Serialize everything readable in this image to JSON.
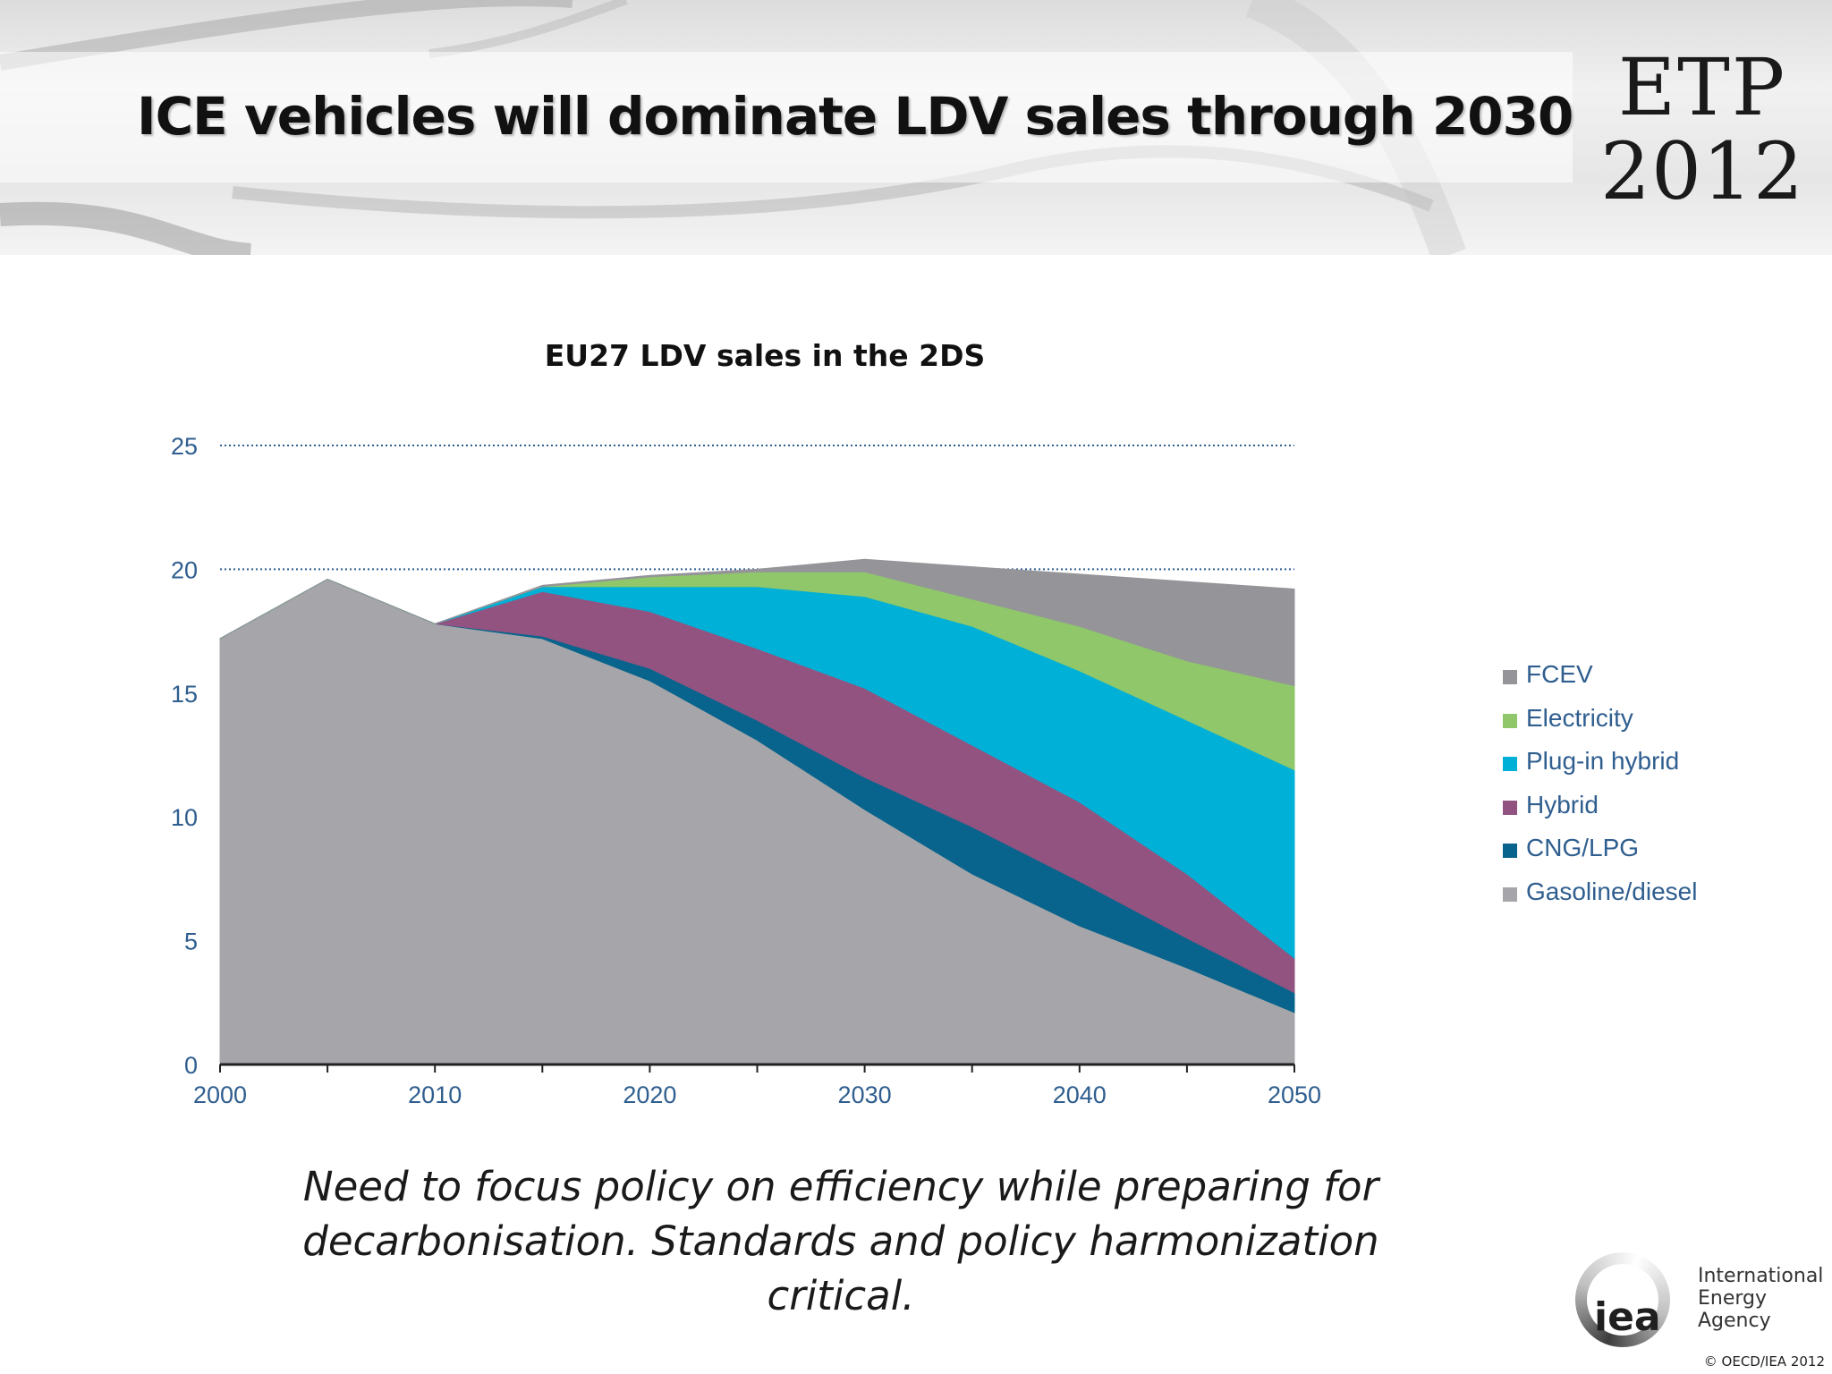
{
  "slide": {
    "title": "ICE vehicles will dominate LDV sales through 2030",
    "brand_line1": "ETP",
    "brand_line2": "2012",
    "caption_line1": "Need to focus policy on efficiency while preparing for",
    "caption_line2": "decarbonisation. Standards and policy harmonization critical.",
    "logo_mark": "iea",
    "logo_name_line1": "International",
    "logo_name_line2": "Energy Agency",
    "copyright": "© OECD/IEA 2012"
  },
  "chart_data": {
    "type": "area",
    "stacked": true,
    "title": "EU27 LDV sales in the 2DS",
    "xlabel": "",
    "ylabel": "",
    "x": [
      2000,
      2005,
      2010,
      2015,
      2020,
      2025,
      2030,
      2035,
      2040,
      2045,
      2050
    ],
    "x_ticks": [
      2000,
      2010,
      2020,
      2030,
      2040,
      2050
    ],
    "y_ticks": [
      0,
      5,
      10,
      15,
      20,
      25
    ],
    "ylim": [
      0,
      25
    ],
    "xlim": [
      2000,
      2050
    ],
    "grid": "horizontal dotted at 20 and 25",
    "legend_position": "right",
    "series": [
      {
        "name": "Gasoline/diesel",
        "color": "#a6a6aa",
        "values": [
          17.2,
          19.6,
          17.8,
          17.2,
          15.5,
          13.1,
          10.3,
          7.7,
          5.6,
          3.9,
          2.1
        ]
      },
      {
        "name": "CNG/LPG",
        "color": "#08648c",
        "values": [
          0,
          0,
          0,
          0.1,
          0.5,
          0.8,
          1.3,
          1.9,
          1.8,
          1.2,
          0.8
        ]
      },
      {
        "name": "Hybrid",
        "color": "#935381",
        "values": [
          0,
          0,
          0,
          1.8,
          2.3,
          2.9,
          3.6,
          3.3,
          3.2,
          2.6,
          1.4
        ]
      },
      {
        "name": "Plug-in hybrid",
        "color": "#00b0d6",
        "values": [
          0,
          0,
          0,
          0.2,
          1.0,
          2.5,
          3.7,
          4.8,
          5.3,
          6.2,
          7.6
        ]
      },
      {
        "name": "Electricity",
        "color": "#8fc76a",
        "values": [
          0,
          0,
          0,
          0,
          0.4,
          0.6,
          1.0,
          1.1,
          1.8,
          2.4,
          3.4
        ]
      },
      {
        "name": "FCEV",
        "color": "#949499",
        "values": [
          0,
          0,
          0,
          0.05,
          0.05,
          0.1,
          0.5,
          1.3,
          2.1,
          3.2,
          3.9
        ]
      }
    ],
    "legend_order": [
      "FCEV",
      "Electricity",
      "Plug-in hybrid",
      "Hybrid",
      "CNG/LPG",
      "Gasoline/diesel"
    ],
    "tick_label_color": "#2f5e8f",
    "axis_color": "#222222"
  }
}
